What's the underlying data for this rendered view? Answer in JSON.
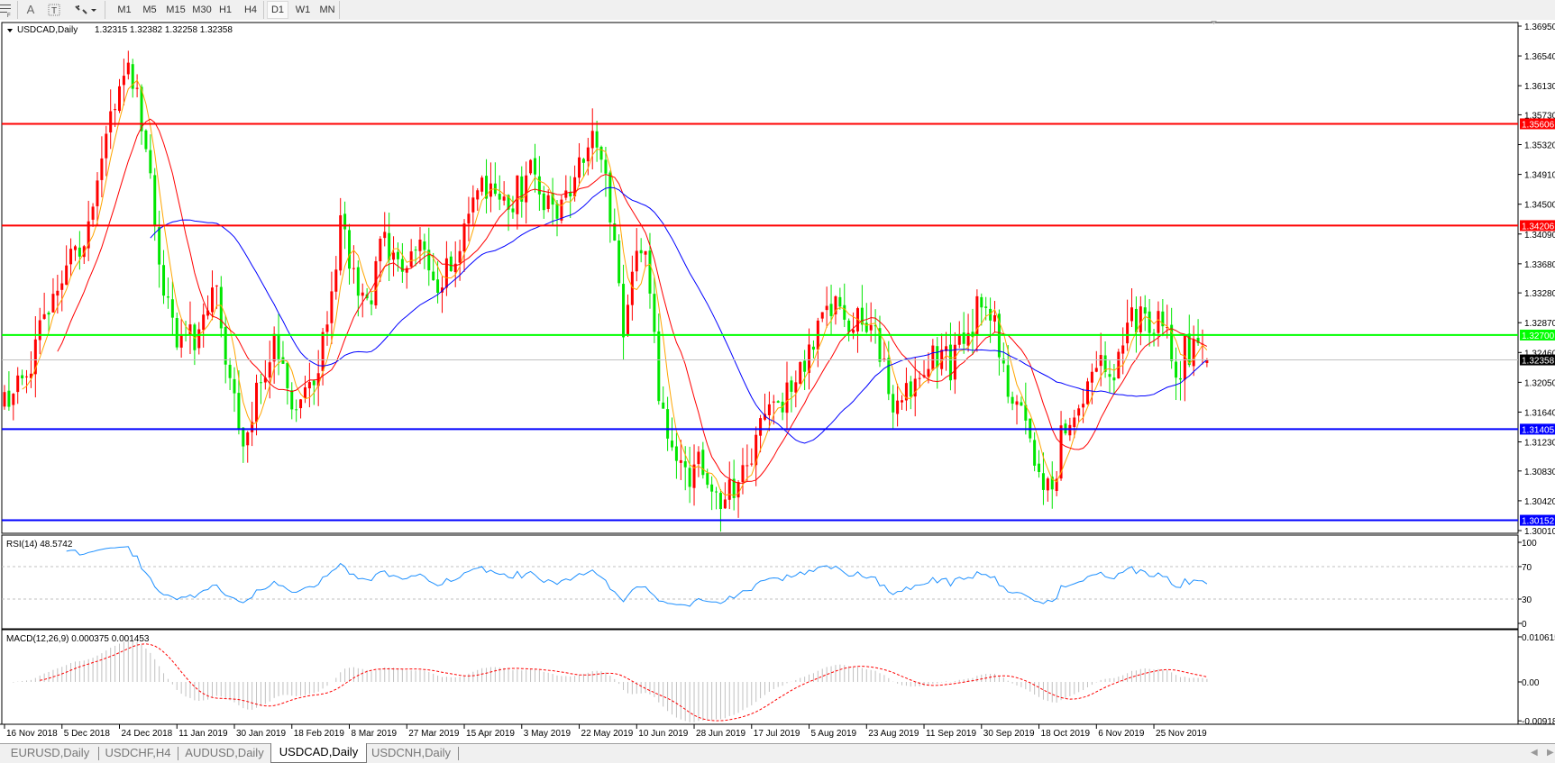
{
  "toolbar": {
    "icons": [
      "period-separator-icon",
      "text-a-icon",
      "text-label-icon",
      "arrows-icon"
    ],
    "timeframes": [
      "M1",
      "M5",
      "M15",
      "M30",
      "H1",
      "H4",
      "D1",
      "W1",
      "MN"
    ],
    "active_timeframe": "D1"
  },
  "chart": {
    "header": "USDCAD,Daily",
    "ohlc": "1.32315 1.32382 1.32258 1.32358",
    "price_ticks": [
      "1.36950",
      "1.36540",
      "1.36130",
      "1.35730",
      "1.35320",
      "1.34910",
      "1.34500",
      "1.34090",
      "1.33680",
      "1.33280",
      "1.32870",
      "1.32460",
      "1.32050",
      "1.31640",
      "1.31230",
      "1.30830",
      "1.30420",
      "1.30010"
    ],
    "levels": [
      {
        "price": 1.35606,
        "label": "1.35606",
        "color": "#ff0000"
      },
      {
        "price": 1.34206,
        "label": "1.34206",
        "color": "#ff0000"
      },
      {
        "price": 1.327,
        "label": "1.32700",
        "color": "#00ff00"
      },
      {
        "price": 1.31405,
        "label": "1.31405",
        "color": "#0000ff"
      },
      {
        "price": 1.30152,
        "label": "1.30152",
        "color": "#0000ff"
      }
    ],
    "bid": {
      "price": 1.32358,
      "label": "1.32358"
    },
    "colors": {
      "bull": "#ff0000",
      "bear": "#00e600",
      "ma_fast": "#ffa500",
      "ma_mid": "#ff0000",
      "ma_slow": "#0000ff"
    },
    "dates": [
      "16 Nov 2018",
      "5 Dec 2018",
      "24 Dec 2018",
      "11 Jan 2019",
      "30 Jan 2019",
      "18 Feb 2019",
      "8 Mar 2019",
      "27 Mar 2019",
      "15 Apr 2019",
      "3 May 2019",
      "22 May 2019",
      "10 Jun 2019",
      "28 Jun 2019",
      "17 Jul 2019",
      "5 Aug 2019",
      "23 Aug 2019",
      "11 Sep 2019",
      "30 Sep 2019",
      "18 Oct 2019",
      "6 Nov 2019",
      "25 Nov 2019"
    ]
  },
  "rsi": {
    "label": "RSI(14) 48.5742",
    "ticks": [
      "100",
      "70",
      "30",
      "0"
    ],
    "color": "#1e90ff"
  },
  "macd": {
    "label": "MACD(12,26,9) 0.000375 0.001453",
    "ticks": [
      "0.010615",
      "0.00",
      "-0.00918"
    ],
    "signal_color": "#ff0000",
    "hist_color": "#c0c0c0"
  },
  "tabs": [
    "EURUSD,Daily",
    "USDCHF,H4",
    "AUDUSD,Daily",
    "USDCAD,Daily",
    "USDCNH,Daily"
  ],
  "active_tab": "USDCAD,Daily",
  "chart_data": {
    "type": "candlestick",
    "symbol": "USDCAD",
    "timeframe": "Daily",
    "ylim": [
      1.3001,
      1.3695
    ],
    "last_ohlc": [
      1.32315,
      1.32382,
      1.32258,
      1.32358
    ],
    "close_path": [
      [
        0,
        1.317
      ],
      [
        5,
        1.322
      ],
      [
        10,
        1.33
      ],
      [
        13,
        1.332
      ],
      [
        15,
        1.34
      ],
      [
        18,
        1.338
      ],
      [
        22,
        1.35
      ],
      [
        24,
        1.358
      ],
      [
        27,
        1.364
      ],
      [
        30,
        1.362
      ],
      [
        32,
        1.352
      ],
      [
        35,
        1.338
      ],
      [
        38,
        1.328
      ],
      [
        41,
        1.326
      ],
      [
        45,
        1.328
      ],
      [
        48,
        1.334
      ],
      [
        50,
        1.324
      ],
      [
        53,
        1.315
      ],
      [
        55,
        1.312
      ],
      [
        58,
        1.322
      ],
      [
        61,
        1.326
      ],
      [
        64,
        1.32
      ],
      [
        67,
        1.316
      ],
      [
        70,
        1.321
      ],
      [
        74,
        1.333
      ],
      [
        76,
        1.342
      ],
      [
        79,
        1.335
      ],
      [
        82,
        1.33
      ],
      [
        86,
        1.341
      ],
      [
        90,
        1.335
      ],
      [
        94,
        1.338
      ],
      [
        98,
        1.334
      ],
      [
        101,
        1.336
      ],
      [
        104,
        1.343
      ],
      [
        107,
        1.348
      ],
      [
        111,
        1.345
      ],
      [
        115,
        1.346
      ],
      [
        119,
        1.349
      ],
      [
        122,
        1.346
      ],
      [
        126,
        1.345
      ],
      [
        130,
        1.351
      ],
      [
        133,
        1.353
      ],
      [
        136,
        1.348
      ],
      [
        138,
        1.338
      ],
      [
        140,
        1.327
      ],
      [
        142,
        1.334
      ],
      [
        144,
        1.34
      ],
      [
        146,
        1.333
      ],
      [
        148,
        1.319
      ],
      [
        151,
        1.313
      ],
      [
        154,
        1.308
      ],
      [
        157,
        1.309
      ],
      [
        160,
        1.305
      ],
      [
        163,
        1.304
      ],
      [
        166,
        1.307
      ],
      [
        169,
        1.311
      ],
      [
        172,
        1.315
      ],
      [
        176,
        1.318
      ],
      [
        179,
        1.322
      ],
      [
        182,
        1.325
      ],
      [
        185,
        1.328
      ],
      [
        188,
        1.331
      ],
      [
        191,
        1.329
      ],
      [
        194,
        1.33
      ],
      [
        197,
        1.328
      ],
      [
        199,
        1.323
      ],
      [
        201,
        1.316
      ],
      [
        203,
        1.318
      ],
      [
        206,
        1.322
      ],
      [
        210,
        1.325
      ],
      [
        214,
        1.323
      ],
      [
        218,
        1.327
      ],
      [
        221,
        1.332
      ],
      [
        224,
        1.33
      ],
      [
        226,
        1.322
      ],
      [
        229,
        1.318
      ],
      [
        232,
        1.312
      ],
      [
        235,
        1.307
      ],
      [
        237,
        1.305
      ],
      [
        239,
        1.313
      ],
      [
        242,
        1.315
      ],
      [
        245,
        1.319
      ],
      [
        248,
        1.323
      ],
      [
        251,
        1.322
      ],
      [
        254,
        1.33
      ],
      [
        257,
        1.329
      ],
      [
        260,
        1.329
      ],
      [
        263,
        1.327
      ],
      [
        265,
        1.32
      ],
      [
        267,
        1.325
      ],
      [
        272,
        1.32358
      ]
    ],
    "moving_averages": [
      5,
      13,
      34
    ]
  }
}
